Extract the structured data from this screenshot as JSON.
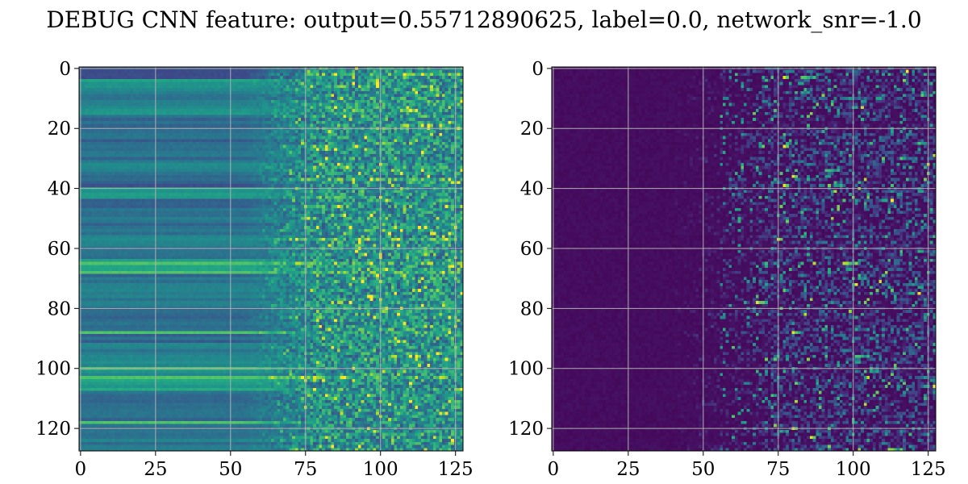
{
  "title": "DEBUG CNN feature: output=0.55712890625, label=0.0, network_snr=-1.0",
  "chart_data": [
    {
      "type": "heatmap",
      "panel": "left",
      "colormap": "viridis",
      "grid": true,
      "grid_color": "#b0b0b0",
      "x_range": [
        0,
        127
      ],
      "y_range": [
        0,
        127
      ],
      "y_inverted": true,
      "x_ticks": [
        0,
        25,
        50,
        75,
        100,
        125
      ],
      "y_ticks": [
        0,
        20,
        40,
        60,
        80,
        100,
        120
      ],
      "x_tick_labels": [
        "0",
        "25",
        "50",
        "75",
        "100",
        "125"
      ],
      "y_tick_labels": [
        "0",
        "20",
        "40",
        "60",
        "80",
        "100",
        "120"
      ],
      "pattern": "horizontal bands of nearly constant value for columns 0–70, noisy speckled values for columns 75–127",
      "band_levels": [
        0.22,
        0.52,
        0.42,
        0.48,
        0.35,
        0.38,
        0.33,
        0.37,
        0.43,
        0.3,
        0.5,
        0.34,
        0.38,
        0.36,
        0.48,
        0.34,
        0.6,
        0.36,
        0.42,
        0.4,
        0.33,
        0.36,
        0.34,
        0.42,
        0.45,
        0.48,
        0.58,
        0.35,
        0.4,
        0.36,
        0.38,
        0.4
      ],
      "bright_rows": [
        65,
        68,
        88,
        100,
        103,
        118
      ],
      "hot_rows_noisy_region": [
        2,
        37,
        57,
        65,
        68,
        103
      ]
    },
    {
      "type": "heatmap",
      "panel": "right",
      "colormap": "viridis",
      "grid": true,
      "grid_color": "#b0b0b0",
      "x_range": [
        0,
        127
      ],
      "y_range": [
        0,
        127
      ],
      "y_inverted": true,
      "x_ticks": [
        0,
        25,
        50,
        75,
        100,
        125
      ],
      "y_ticks": [
        0,
        20,
        40,
        60,
        80,
        100,
        120
      ],
      "x_tick_labels": [
        "0",
        "25",
        "50",
        "75",
        "100",
        "125"
      ],
      "y_tick_labels": [
        "0",
        "20",
        "40",
        "60",
        "80",
        "100",
        "120"
      ],
      "pattern": "dark purple background (near zero) for columns 0–40, increasingly active noisy values for columns 40–127 with bright spots around columns 75–105",
      "hot_spots": [
        [
          3,
          77
        ],
        [
          26,
          77
        ],
        [
          36,
          80
        ],
        [
          39,
          77
        ],
        [
          57,
          75
        ],
        [
          78,
          68
        ],
        [
          88,
          80
        ],
        [
          120,
          80
        ],
        [
          123,
          86
        ]
      ]
    }
  ]
}
